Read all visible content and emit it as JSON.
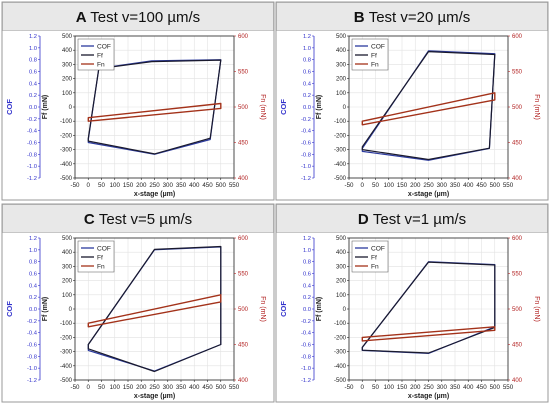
{
  "colors": {
    "cof": "#2b3a9e",
    "ff": "#1a1a2e",
    "fn": "#a3321a",
    "cof_axis": "#3333cc",
    "fn_axis": "#b22222",
    "header_bg": "#e8e8e8",
    "border": "#9a9a9a"
  },
  "legend": [
    "COF",
    "Ff",
    "Fn"
  ],
  "axes": {
    "xlabel": "x-stage (µm)",
    "ylabel_cof": "COF",
    "ylabel_ff": "Ff (mN)",
    "ylabel_fn": "Fn (mN)",
    "x_ticks": [
      "-50",
      "0",
      "50",
      "100",
      "150",
      "200",
      "250",
      "300",
      "350",
      "400",
      "450",
      "500",
      "550"
    ],
    "cof_ticks": [
      "1.2",
      "1.0",
      "0.8",
      "0.6",
      "0.4",
      "0.2",
      "0.0",
      "-0.2",
      "-0.4",
      "-0.6",
      "-0.8",
      "-1.0",
      "-1.2"
    ],
    "ff_ticks": [
      "500",
      "400",
      "300",
      "200",
      "100",
      "0",
      "-100",
      "-200",
      "-300",
      "-400",
      "-500"
    ],
    "fn_ticks": [
      "600",
      "550",
      "500",
      "450",
      "400"
    ]
  },
  "chart_data": [
    {
      "type": "line",
      "letter": "A",
      "title": "Test v=100 µm/s",
      "xlim": [
        -50,
        550
      ],
      "ylim_ff": [
        -500,
        500
      ],
      "ylim_cof": [
        -1.2,
        1.2
      ],
      "ylim_fn": [
        400,
        600
      ],
      "series": [
        {
          "name": "COF",
          "axis": "cof",
          "x": [
            0,
            40,
            240,
            500,
            460,
            250,
            0
          ],
          "y": [
            -0.55,
            0.65,
            0.78,
            0.8,
            -0.55,
            -0.8,
            -0.6
          ]
        },
        {
          "name": "Ff",
          "axis": "ff",
          "x": [
            0,
            40,
            240,
            500,
            460,
            250,
            0
          ],
          "y": [
            -220,
            270,
            320,
            330,
            -220,
            -330,
            -240
          ]
        },
        {
          "name": "Fn",
          "axis": "fn",
          "x": [
            0,
            500,
            500,
            0
          ],
          "y": [
            485,
            505,
            498,
            480
          ]
        }
      ]
    },
    {
      "type": "line",
      "letter": "B",
      "title": "Test v=20 µm/s",
      "xlim": [
        -50,
        550
      ],
      "ylim_ff": [
        -500,
        500
      ],
      "ylim_cof": [
        -1.2,
        1.2
      ],
      "ylim_fn": [
        400,
        600
      ],
      "series": [
        {
          "name": "COF",
          "axis": "cof",
          "x": [
            0,
            250,
            500,
            480,
            250,
            0
          ],
          "y": [
            -0.7,
            0.95,
            0.9,
            -0.7,
            -0.9,
            -0.75
          ]
        },
        {
          "name": "Ff",
          "axis": "ff",
          "x": [
            0,
            250,
            500,
            480,
            250,
            0
          ],
          "y": [
            -280,
            390,
            370,
            -290,
            -370,
            -300
          ]
        },
        {
          "name": "Fn",
          "axis": "fn",
          "x": [
            0,
            500,
            500,
            0
          ],
          "y": [
            480,
            520,
            510,
            475
          ]
        }
      ]
    },
    {
      "type": "line",
      "letter": "C",
      "title": "Test v=5 µm/s",
      "xlim": [
        -50,
        550
      ],
      "ylim_ff": [
        -500,
        500
      ],
      "ylim_cof": [
        -1.2,
        1.2
      ],
      "ylim_fn": [
        400,
        600
      ],
      "series": [
        {
          "name": "COF",
          "axis": "cof",
          "x": [
            0,
            250,
            500,
            500,
            250,
            0
          ],
          "y": [
            -0.6,
            1.0,
            1.05,
            -0.6,
            -1.05,
            -0.7
          ]
        },
        {
          "name": "Ff",
          "axis": "ff",
          "x": [
            0,
            250,
            500,
            500,
            250,
            0
          ],
          "y": [
            -250,
            420,
            440,
            -250,
            -440,
            -280
          ]
        },
        {
          "name": "Fn",
          "axis": "fn",
          "x": [
            0,
            500,
            500,
            0
          ],
          "y": [
            480,
            520,
            510,
            475
          ]
        }
      ]
    },
    {
      "type": "line",
      "letter": "D",
      "title": "Test v=1 µm/s",
      "xlim": [
        -50,
        550
      ],
      "ylim_ff": [
        -500,
        500
      ],
      "ylim_cof": [
        -1.2,
        1.2
      ],
      "ylim_fn": [
        400,
        600
      ],
      "series": [
        {
          "name": "COF",
          "axis": "cof",
          "x": [
            0,
            250,
            500,
            500,
            250,
            0
          ],
          "y": [
            -0.65,
            0.8,
            0.75,
            -0.3,
            -0.75,
            -0.7
          ]
        },
        {
          "name": "Ff",
          "axis": "ff",
          "x": [
            0,
            250,
            500,
            500,
            250,
            0
          ],
          "y": [
            -270,
            330,
            310,
            -130,
            -310,
            -290
          ]
        },
        {
          "name": "Fn",
          "axis": "fn",
          "x": [
            0,
            500,
            500,
            0
          ],
          "y": [
            460,
            475,
            470,
            455
          ]
        }
      ]
    }
  ]
}
